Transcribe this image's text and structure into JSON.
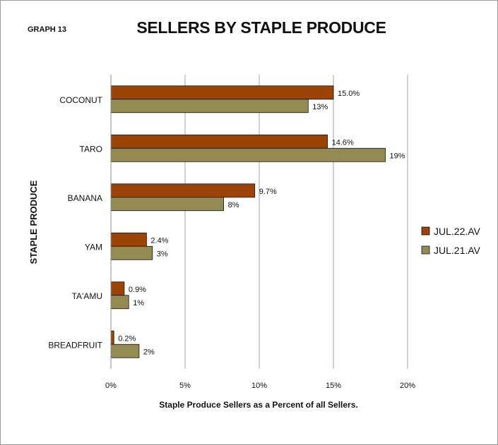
{
  "graph_label": "GRAPH 13",
  "chart_data": {
    "type": "bar",
    "orientation": "horizontal",
    "title": "SELLERS BY STAPLE PRODUCE",
    "xlabel": "Staple Produce Sellers as a Percent of all Sellers.",
    "ylabel": "STAPLE PRODUCE",
    "xlim": [
      0,
      20
    ],
    "xticks": [
      0,
      5,
      10,
      15,
      20
    ],
    "xtick_labels": [
      "0%",
      "5%",
      "10%",
      "15%",
      "20%"
    ],
    "categories": [
      "COCONUT",
      "TARO",
      "BANANA",
      "YAM",
      "TA'AMU",
      "BREADFRUIT"
    ],
    "series": [
      {
        "name": "JUL.22.AV",
        "color": "#9c4408",
        "values": [
          15.0,
          14.6,
          9.7,
          2.4,
          0.9,
          0.2
        ],
        "labels": [
          "15.0%",
          "14.6%",
          "9.7%",
          "2.4%",
          "0.9%",
          "0.2%"
        ]
      },
      {
        "name": "JUL.21.AV",
        "color": "#948a54",
        "values": [
          13.3,
          18.5,
          7.6,
          2.8,
          1.2,
          1.9
        ],
        "labels": [
          "13%",
          "19%",
          "8%",
          "3%",
          "1%",
          "2%"
        ]
      }
    ],
    "grid": true,
    "legend_position": "right"
  }
}
